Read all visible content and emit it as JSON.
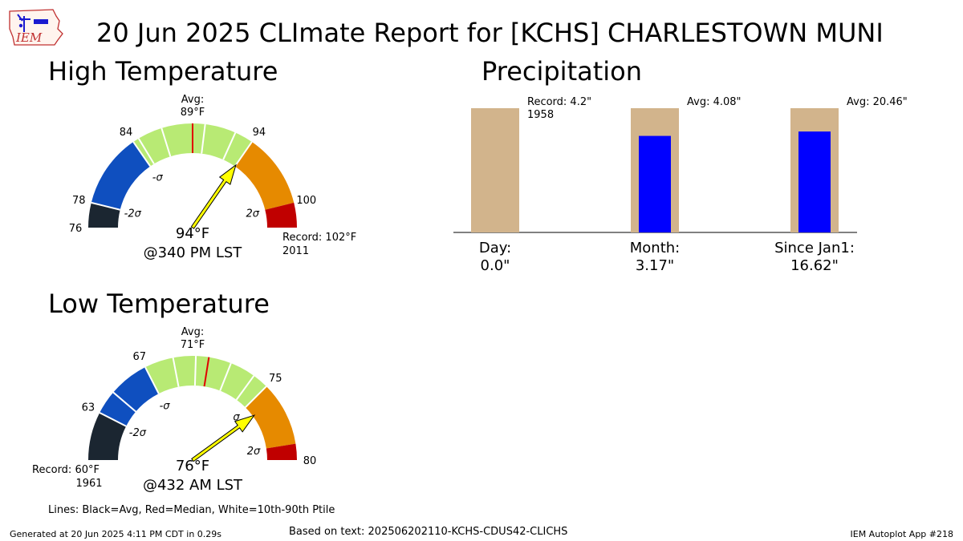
{
  "header": {
    "logo_text": "IEM",
    "title": "20 Jun 2025 CLImate Report for [KCHS] CHARLESTOWN MUNI"
  },
  "colors": {
    "band_colors": [
      "#1b2631",
      "#0f4fbf",
      "#b8ea74",
      "#e68a00",
      "#c00000"
    ],
    "median_line": "#e00000",
    "needle": "#ffff00",
    "precip_avg_bar": "#d2b48c",
    "precip_obs_bar": "#0000ff"
  },
  "chart_data": [
    {
      "type": "gauge",
      "title": "High Temperature",
      "units": "°F",
      "range": [
        76,
        102
      ],
      "avg": 89,
      "avg_label": "Avg:",
      "avg_value_label": "89°F",
      "observed": 94,
      "observed_label": "94°F",
      "time_label": "@340 PM LST",
      "record_label": "Record: 102°F",
      "record_year": "2011",
      "band_edges": [
        76,
        78,
        84,
        94,
        100,
        102
      ],
      "tick_labels": [
        "76",
        "78",
        "84",
        "94",
        "100"
      ],
      "tick_values": [
        76,
        78,
        84,
        94,
        100
      ],
      "sigma_labels": [
        "-2σ",
        "-σ",
        "σ",
        "2σ"
      ],
      "sigma_values": [
        78,
        84,
        94,
        100
      ],
      "percentile_lines": [
        84.5,
        86.5,
        90,
        92.5
      ],
      "median": 89
    },
    {
      "type": "gauge",
      "title": "Low Temperature",
      "units": "°F",
      "range": [
        60,
        80
      ],
      "avg": 71,
      "avg_label": "Avg:",
      "avg_value_label": "71°F",
      "observed": 76,
      "observed_label": "76°F",
      "time_label": "@432 AM LST",
      "record_label": "Record: 60°F",
      "record_year": "1961",
      "band_edges": [
        60,
        63,
        67,
        75,
        79,
        80
      ],
      "tick_labels": [
        "63",
        "67",
        "75",
        "80"
      ],
      "tick_values": [
        63,
        67,
        75,
        80
      ],
      "sigma_labels": [
        "-2σ",
        "-σ",
        "σ",
        "2σ"
      ],
      "sigma_values": [
        63,
        67,
        75,
        79
      ],
      "percentile_lines": [
        64.5,
        68.8,
        70.2,
        72.4,
        74
      ],
      "median": 71
    },
    {
      "type": "bar",
      "title": "Precipitation",
      "ylim": [
        0,
        4.2
      ],
      "categories": [
        "Day:",
        "Month:",
        "Since Jan1:"
      ],
      "observed_labels": [
        "0.0\"",
        "3.17\"",
        "16.62\""
      ],
      "observed": [
        0.0,
        3.17,
        16.62
      ],
      "reference": [
        4.2,
        4.08,
        20.46
      ],
      "reference_labels": [
        "Record: 4.2\"",
        "Avg: 4.08\"",
        "Avg: 20.46\""
      ],
      "reference_sublabels": [
        "1958",
        "",
        ""
      ]
    }
  ],
  "legend_note": "Lines: Black=Avg, Red=Median, White=10th-90th Ptile",
  "footer": {
    "generated": "Generated at 20 Jun 2025 4:11 PM CDT in 0.29s",
    "source_text": "Based on text: 202506202110-KCHS-CDUS42-CLICHS",
    "app": "IEM Autoplot App #218"
  }
}
